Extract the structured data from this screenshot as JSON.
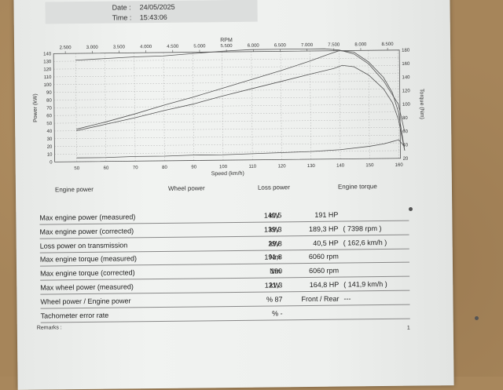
{
  "header": {
    "date_label": "Date :",
    "date_value": "24/05/2025",
    "time_label": "Time :",
    "time_value": "15:43:06"
  },
  "chart_data": {
    "type": "line",
    "top_axis": {
      "label": "RPM",
      "ticks": [
        "2.500",
        "3.000",
        "3.500",
        "4.000",
        "4.500",
        "5.000",
        "5.500",
        "6.000",
        "6.500",
        "7.000",
        "7.500",
        "8.000",
        "8.500"
      ],
      "range": [
        2500,
        8500
      ]
    },
    "x": {
      "label": "Speed (km/h)",
      "ticks": [
        "50",
        "60",
        "70",
        "80",
        "90",
        "100",
        "110",
        "120",
        "130",
        "140",
        "150",
        "160"
      ],
      "range": [
        50,
        160
      ]
    },
    "y_left": {
      "label": "Power (kW)",
      "ticks": [
        "140",
        "130",
        "120",
        "110",
        "100",
        "90",
        "80",
        "70",
        "60",
        "50",
        "40",
        "30",
        "20",
        "10",
        "0"
      ],
      "range": [
        0,
        140
      ]
    },
    "y_right": {
      "label": "Torque (Nm)",
      "ticks": [
        "180",
        "160",
        "140",
        "120",
        "100",
        "80",
        "60",
        "40",
        "20"
      ],
      "range": [
        20,
        180
      ]
    },
    "series": [
      {
        "name": "Engine power",
        "x": [
          50,
          60,
          70,
          80,
          90,
          100,
          110,
          120,
          130,
          136,
          140,
          145,
          150,
          155,
          158,
          160,
          162
        ],
        "y": [
          42,
          51,
          61,
          72,
          82,
          93,
          104,
          115,
          127,
          135,
          140,
          138,
          125,
          105,
          85,
          60,
          10
        ]
      },
      {
        "name": "Wheel power",
        "x": [
          50,
          60,
          70,
          80,
          90,
          100,
          110,
          120,
          130,
          138,
          141,
          145,
          150,
          155,
          158,
          160,
          162
        ],
        "y": [
          40,
          48,
          56,
          65,
          73,
          83,
          92,
          101,
          110,
          117,
          121,
          119,
          108,
          90,
          72,
          50,
          10
        ]
      },
      {
        "name": "Loss power",
        "x": [
          50,
          60,
          70,
          80,
          90,
          100,
          110,
          120,
          130,
          140,
          150,
          155,
          158,
          160,
          162
        ],
        "y": [
          5,
          5,
          6,
          6,
          7,
          7,
          8,
          9,
          10,
          12,
          16,
          19,
          22,
          24,
          15
        ]
      },
      {
        "name": "Engine torque",
        "x": [
          50,
          60,
          70,
          80,
          90,
          100,
          110,
          120,
          130,
          135,
          140,
          145,
          150,
          155,
          160,
          162
        ],
        "y": [
          170,
          172,
          174,
          175,
          178,
          181,
          183,
          183,
          183,
          183,
          181,
          175,
          160,
          135,
          100,
          60
        ]
      }
    ],
    "legend": [
      "Engine power",
      "Wheel power",
      "Loss power",
      "Engine torque"
    ]
  },
  "table": {
    "rows": [
      {
        "label": "Max engine power (measured)",
        "v1": "140,5",
        "u1": "kW",
        "v2": "191 HP",
        "v3": ""
      },
      {
        "label": "Max engine power (corrected)",
        "v1": "139,3",
        "u1": "kW",
        "v2": "189,3 HP",
        "v3": "( 7398 rpm )"
      },
      {
        "label": "Loss power on transmission",
        "v1": "29,8",
        "u1": "kW",
        "v2": "40,5 HP",
        "v3": "( 162,6 km/h )"
      },
      {
        "label": "Max engine torque (measured)",
        "v1": "191,8",
        "u1": "Nm",
        "v2": "6060 rpm",
        "v3": ""
      },
      {
        "label": "Max engine torque (corrected)",
        "v1": "190",
        "u1": "Nm",
        "v2": "6060 rpm",
        "v3": ""
      },
      {
        "label": "Max wheel power (measured)",
        "v1": "121,3",
        "u1": "kW",
        "v2": "164,8 HP",
        "v3": "( 141,9 km/h )"
      },
      {
        "label": "Wheel power / Engine power",
        "v1": "% 87",
        "u1": "",
        "v2": "Front / Rear",
        "v3": "---"
      },
      {
        "label": "Tachometer error rate",
        "v1": "% -",
        "u1": "",
        "v2": "",
        "v3": ""
      }
    ]
  },
  "footer": {
    "remarks_label": "Remarks :",
    "page_number": "1"
  },
  "colors": {
    "paper": "#eef0ee",
    "ink": "#444444",
    "grid": "#9a9a9a"
  }
}
